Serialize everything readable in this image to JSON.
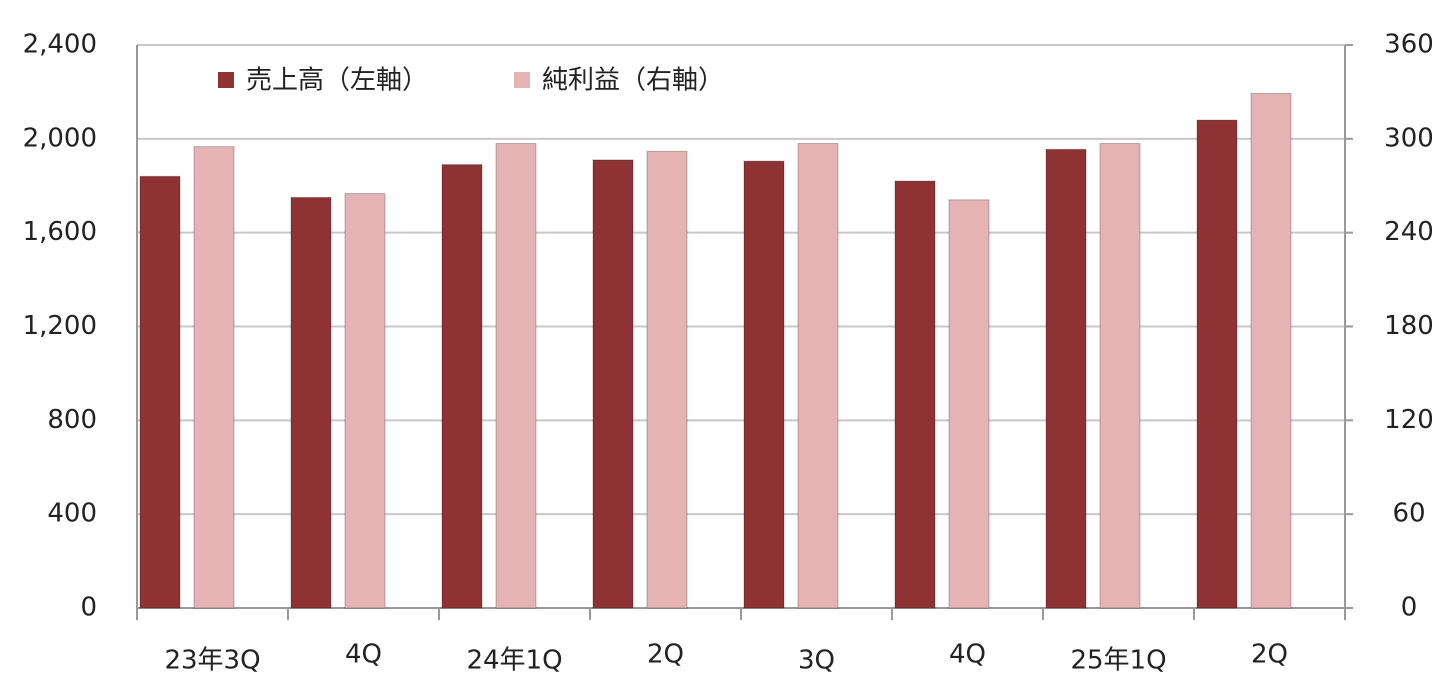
{
  "chart_data": {
    "type": "bar",
    "categories": [
      "23年3Q",
      "4Q",
      "24年1Q",
      "2Q",
      "3Q",
      "4Q",
      "25年1Q",
      "2Q"
    ],
    "series": [
      {
        "name": "売上高（左軸）",
        "color": "#8e3234",
        "values": [
          1840,
          1750,
          1890,
          1910,
          1905,
          1820,
          1955,
          2080
        ]
      },
      {
        "name": "純利益（右軸）",
        "color": "#e6b3b4",
        "axis": "y2",
        "values": [
          295,
          265,
          297,
          292,
          297,
          261,
          297,
          329
        ]
      }
    ],
    "ylim": [
      0,
      2400
    ],
    "yticks": [
      0,
      400,
      800,
      {
        "value": 1200,
        "label": "1,200"
      },
      {
        "value": 1600,
        "label": "1,600"
      },
      {
        "value": 2000,
        "label": "2,000"
      },
      {
        "value": 2400,
        "label": "2,400"
      }
    ],
    "y2lim": [
      0,
      360
    ],
    "y2ticks": [
      0,
      60,
      120,
      180,
      240,
      300,
      360
    ],
    "grid": true,
    "legend": "top-left"
  }
}
